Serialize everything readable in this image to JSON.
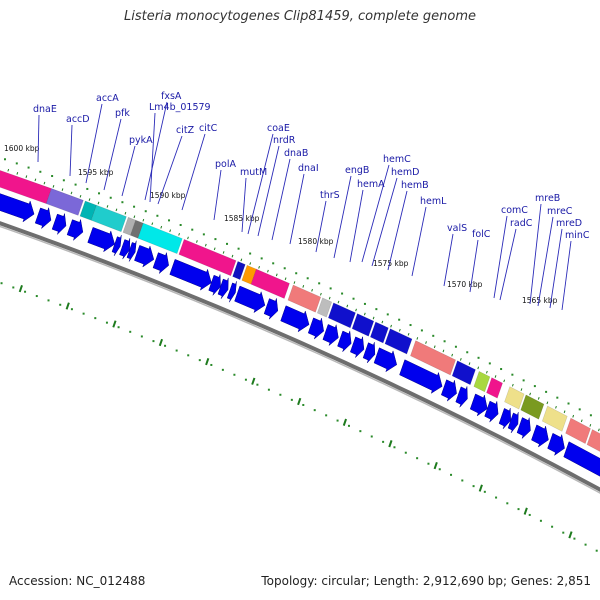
{
  "title": "Listeria monocytogenes Clip81459, complete genome",
  "footer": {
    "accession": "Accession: NC_012488",
    "summary": "Topology: circular; Length: 2,912,690 bp; Genes: 2,851"
  },
  "colors": {
    "gene_label": "#1a1aa6",
    "cds_arrow": "#0000ee",
    "tick_green": "#006e00",
    "backbone": "#777777"
  },
  "scale_ticks": [
    {
      "label": "1600 kbp"
    },
    {
      "label": "1595 kbp"
    },
    {
      "label": "1590 kbp"
    },
    {
      "label": "1585 kbp"
    },
    {
      "label": "1580 kbp"
    },
    {
      "label": "1575 kbp"
    },
    {
      "label": "1570 kbp"
    },
    {
      "label": "1565 kbp"
    }
  ],
  "gene_labels": [
    {
      "text": "dnaE"
    },
    {
      "text": "accD"
    },
    {
      "text": "accA"
    },
    {
      "text": "pfk"
    },
    {
      "text": "pykA"
    },
    {
      "text": "fxsA"
    },
    {
      "text": "Lm4b_01579"
    },
    {
      "text": "citZ"
    },
    {
      "text": "citC"
    },
    {
      "text": "polA"
    },
    {
      "text": "mutM"
    },
    {
      "text": "coaE"
    },
    {
      "text": "nrdR"
    },
    {
      "text": "dnaB"
    },
    {
      "text": "dnaI"
    },
    {
      "text": "thrS"
    },
    {
      "text": "engB"
    },
    {
      "text": "hemC"
    },
    {
      "text": "hemA"
    },
    {
      "text": "hemD"
    },
    {
      "text": "hemB"
    },
    {
      "text": "hemL"
    },
    {
      "text": "valS"
    },
    {
      "text": "folC"
    },
    {
      "text": "comC"
    },
    {
      "text": "radC"
    },
    {
      "text": "mreB"
    },
    {
      "text": "mreC"
    },
    {
      "text": "mreD"
    },
    {
      "text": "minC"
    }
  ]
}
